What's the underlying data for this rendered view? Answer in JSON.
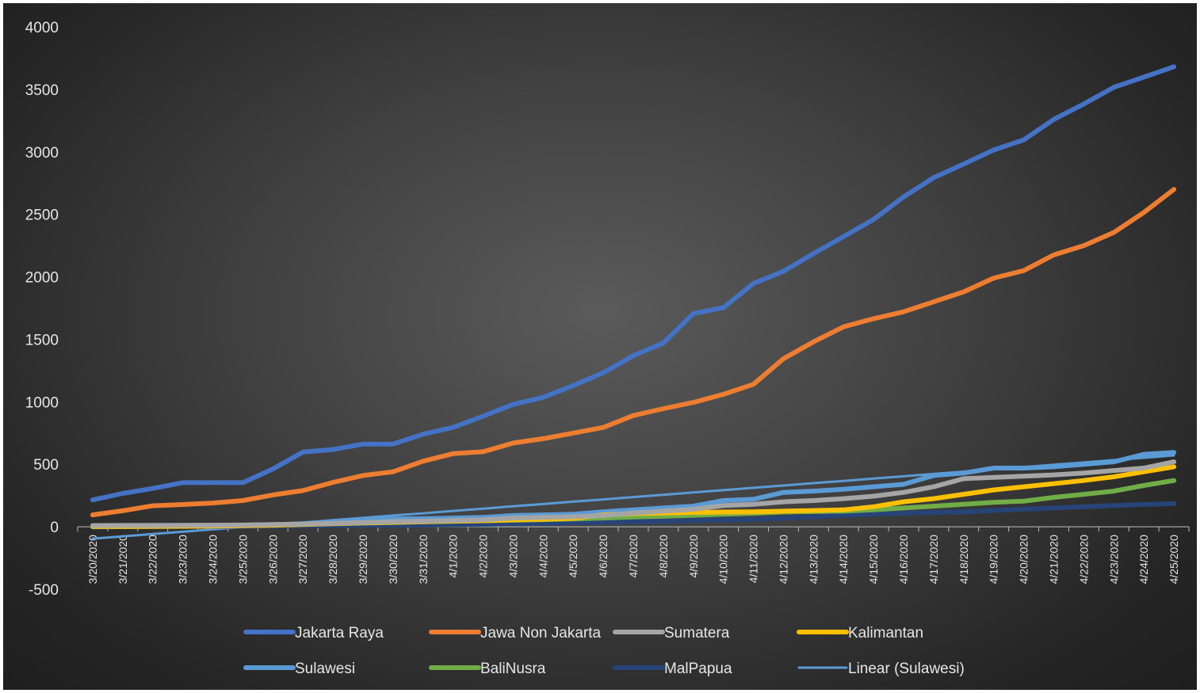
{
  "chart_data": {
    "type": "line",
    "title": "",
    "xlabel": "",
    "ylabel": "",
    "ylim": [
      -500,
      4000
    ],
    "yticks": [
      -500,
      0,
      500,
      1000,
      1500,
      2000,
      2500,
      3000,
      3500,
      4000
    ],
    "grid": false,
    "legend_position": "bottom",
    "categories": [
      "3/20/2020",
      "3/21/2020",
      "3/22/2020",
      "3/23/2020",
      "3/24/2020",
      "3/25/2020",
      "3/26/2020",
      "3/27/2020",
      "3/28/2020",
      "3/29/2020",
      "3/30/2020",
      "3/31/2020",
      "4/1/2020",
      "4/2/2020",
      "4/3/2020",
      "4/4/2020",
      "4/5/2020",
      "4/6/2020",
      "4/7/2020",
      "4/8/2020",
      "4/9/2020",
      "4/10/2020",
      "4/11/2020",
      "4/12/2020",
      "4/13/2020",
      "4/14/2020",
      "4/15/2020",
      "4/16/2020",
      "4/17/2020",
      "4/18/2020",
      "4/19/2020",
      "4/20/2020",
      "4/21/2020",
      "4/22/2020",
      "4/23/2020",
      "4/24/2020",
      "4/25/2020"
    ],
    "series": [
      {
        "name": "Jakarta Raya",
        "color": "#4472c4",
        "width": 6,
        "values": [
          215,
          267,
          307,
          353,
          353,
          353,
          463,
          598,
          618,
          662,
          662,
          741,
          795,
          885,
          979,
          1036,
          1130,
          1233,
          1369,
          1470,
          1706,
          1753,
          1947,
          2044,
          2186,
          2322,
          2459,
          2640,
          2793,
          2902,
          3015,
          3096,
          3260,
          3383,
          3517,
          3598,
          3681
        ]
      },
      {
        "name": "Jawa Non Jakarta",
        "color": "#ed7d31",
        "width": 6,
        "values": [
          95,
          128,
          168,
          178,
          190,
          210,
          255,
          290,
          355,
          410,
          440,
          525,
          585,
          600,
          670,
          705,
          750,
          795,
          890,
          945,
          995,
          1060,
          1140,
          1345,
          1480,
          1600,
          1665,
          1720,
          1800,
          1880,
          1990,
          2050,
          2175,
          2250,
          2355,
          2515,
          2700
        ]
      },
      {
        "name": "Sumatera",
        "color": "#a5a5a5",
        "width": 6,
        "values": [
          10,
          11,
          11,
          12,
          13,
          14,
          18,
          22,
          28,
          34,
          40,
          45,
          50,
          55,
          70,
          75,
          80,
          90,
          110,
          125,
          140,
          170,
          180,
          200,
          210,
          225,
          245,
          275,
          320,
          385,
          395,
          405,
          415,
          430,
          450,
          470,
          520
        ]
      },
      {
        "name": "Kalimantan",
        "color": "#ffc000",
        "width": 6,
        "values": [
          2,
          2,
          3,
          4,
          5,
          8,
          12,
          18,
          24,
          30,
          35,
          40,
          45,
          48,
          55,
          60,
          68,
          95,
          105,
          110,
          115,
          118,
          120,
          125,
          130,
          135,
          160,
          200,
          225,
          260,
          295,
          320,
          345,
          370,
          400,
          440,
          480
        ]
      },
      {
        "name": "Sulawesi",
        "color": "#5b9bd5",
        "width": 6,
        "values": [
          0,
          1,
          2,
          3,
          5,
          8,
          14,
          25,
          40,
          55,
          62,
          65,
          70,
          75,
          90,
          95,
          100,
          120,
          135,
          150,
          165,
          210,
          220,
          275,
          285,
          300,
          320,
          340,
          410,
          430,
          470,
          470,
          480,
          500,
          520,
          580,
          595
        ]
      },
      {
        "name": "BaliNusra",
        "color": "#70ad47",
        "width": 6,
        "values": [
          4,
          5,
          6,
          8,
          10,
          13,
          17,
          22,
          28,
          32,
          36,
          40,
          44,
          48,
          52,
          57,
          62,
          70,
          78,
          84,
          92,
          100,
          108,
          118,
          122,
          125,
          135,
          150,
          165,
          180,
          195,
          205,
          235,
          260,
          285,
          330,
          370
        ]
      },
      {
        "name": "MalPapua",
        "color": "#264478",
        "width": 6,
        "values": [
          0,
          0,
          1,
          2,
          3,
          4,
          5,
          7,
          9,
          11,
          13,
          15,
          17,
          20,
          24,
          27,
          32,
          36,
          40,
          44,
          50,
          55,
          60,
          70,
          80,
          90,
          100,
          108,
          115,
          120,
          130,
          140,
          150,
          160,
          170,
          178,
          185
        ]
      },
      {
        "name": "Linear (Sulawesi)",
        "color": "#5b9bd5",
        "width": 3,
        "values": [
          -95,
          -77,
          -58,
          -40,
          -21,
          -3,
          16,
          34,
          53,
          71,
          90,
          108,
          127,
          145,
          164,
          182,
          201,
          219,
          238,
          256,
          275,
          293,
          312,
          330,
          349,
          367,
          386,
          404,
          423,
          441,
          460,
          478,
          497,
          515,
          534,
          552,
          571
        ]
      }
    ]
  }
}
